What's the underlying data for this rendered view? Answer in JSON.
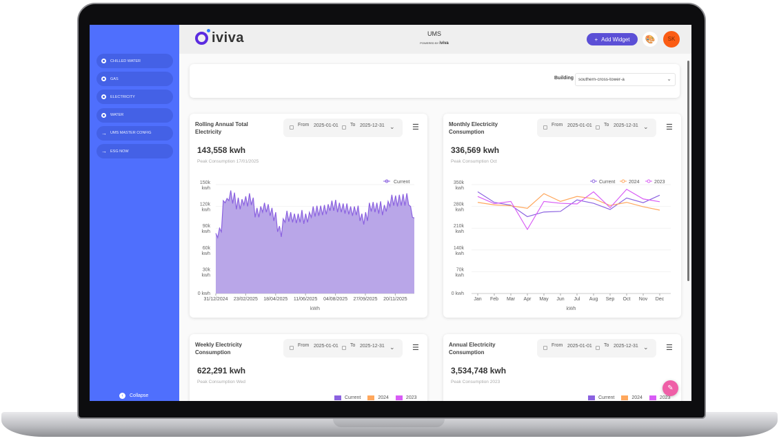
{
  "sidebar": {
    "items": [
      {
        "label": "CHILLED WATER",
        "icon": "radio-dot-icon"
      },
      {
        "label": "GAS",
        "icon": "radio-dot-icon"
      },
      {
        "label": "ELECTRICITY",
        "icon": "radio-dot-icon"
      },
      {
        "label": "WATER",
        "icon": "radio-dot-icon"
      },
      {
        "label": "UMS MASTER CONFIG",
        "icon": "arrow-right-icon"
      },
      {
        "label": "ESG NOW",
        "icon": "arrow-right-icon"
      }
    ],
    "collapse": "Collapse"
  },
  "header": {
    "logo": "iviva",
    "title": "UMS",
    "powered_by": "POWERED BY",
    "powered_brand": "iviva",
    "add_widget": "Add Widget",
    "avatar": "SK"
  },
  "filter": {
    "building_label": "Building",
    "building_value": "southern-cross-tower-a"
  },
  "colors": {
    "sidebar": "#4f6ffd",
    "current": "#8b62e0",
    "y2024": "#ffa75c",
    "y2023": "#d85cf5",
    "accent": "#5b4fd6"
  },
  "widgets": [
    {
      "title": "Rolling Annual Total Electricity",
      "from_label": "From",
      "from": "2025-01-01",
      "to_label": "To",
      "to": "2025-12-31",
      "value": "143,558 kwh",
      "peak": "Peak Consumption 17/01/2025"
    },
    {
      "title": "Monthly Electricity Consumption",
      "from_label": "From",
      "from": "2025-01-01",
      "to_label": "To",
      "to": "2025-12-31",
      "value": "336,569 kwh",
      "peak": "Peak Consumption Oct"
    },
    {
      "title": "Weekly Electricity Consumption",
      "from_label": "From",
      "from": "2025-01-01",
      "to_label": "To",
      "to": "2025-12-31",
      "value": "622,291 kwh",
      "peak": "Peak Consumption Wed",
      "legend": [
        "Current",
        "2024",
        "2023"
      ]
    },
    {
      "title": "Annual Electricity Consumption",
      "from_label": "From",
      "from": "2025-01-01",
      "to_label": "To",
      "to": "2025-12-31",
      "value": "3,534,748 kwh",
      "peak": "Peak Consumption 2023",
      "legend": [
        "Current",
        "2024",
        "2023"
      ]
    }
  ],
  "chart_data": [
    {
      "type": "area",
      "title": "Rolling Annual Total Electricity",
      "xlabel": "kWh",
      "ylabel": "",
      "ylim": [
        0,
        150
      ],
      "yticks": [
        "0 kwh",
        "30k kwh",
        "60k kwh",
        "90k kwh",
        "120k kwh",
        "150k kwh"
      ],
      "xticks": [
        "31/12/2024",
        "23/02/2025",
        "18/04/2025",
        "11/06/2025",
        "04/08/2025",
        "27/09/2025",
        "20/11/2025"
      ],
      "series": [
        {
          "name": "Current",
          "values": [
            83,
            77,
            90,
            85,
            128,
            125,
            131,
            128,
            142,
            124,
            139,
            116,
            132,
            116,
            130,
            122,
            134,
            120,
            138,
            122,
            132,
            105,
            118,
            105,
            120,
            112,
            125,
            112,
            123,
            107,
            118,
            100,
            112,
            85,
            93,
            78,
            103,
            98,
            114,
            99,
            112,
            98,
            110,
            97,
            110,
            98,
            115,
            96,
            110,
            98,
            112,
            105,
            120,
            106,
            121,
            107,
            121,
            108,
            122,
            109,
            123,
            114,
            128,
            114,
            129,
            112,
            125,
            112,
            124,
            110,
            124,
            109,
            120,
            107,
            120,
            108,
            121,
            100,
            110,
            95,
            112,
            100,
            125,
            113,
            126,
            112,
            125,
            110,
            127,
            108,
            122,
            113,
            127,
            120,
            136,
            121,
            135,
            120,
            136,
            121,
            137,
            121,
            138,
            122,
            120,
            105,
            104
          ]
        }
      ]
    },
    {
      "type": "line",
      "title": "Monthly Electricity Consumption",
      "xlabel": "kWh",
      "ylim": [
        0,
        350
      ],
      "yticks": [
        "0 kwh",
        "70k kwh",
        "140k kwh",
        "210k kwh",
        "280k kwh",
        "350k kwh"
      ],
      "categories": [
        "Jan",
        "Feb",
        "Mar",
        "Apr",
        "May",
        "Jun",
        "Jul",
        "Aug",
        "Sep",
        "Oct",
        "Nov",
        "Dec"
      ],
      "series": [
        {
          "name": "Current",
          "values": [
            327,
            293,
            284,
            247,
            262,
            264,
            301,
            290,
            270,
            307,
            292,
            316
          ]
        },
        {
          "name": "2024",
          "values": [
            293,
            285,
            282,
            274,
            321,
            296,
            312,
            305,
            283,
            293,
            279,
            268
          ]
        },
        {
          "name": "2023",
          "values": [
            312,
            289,
            296,
            206,
            296,
            290,
            288,
            327,
            276,
            335,
            304,
            295
          ]
        }
      ]
    }
  ]
}
